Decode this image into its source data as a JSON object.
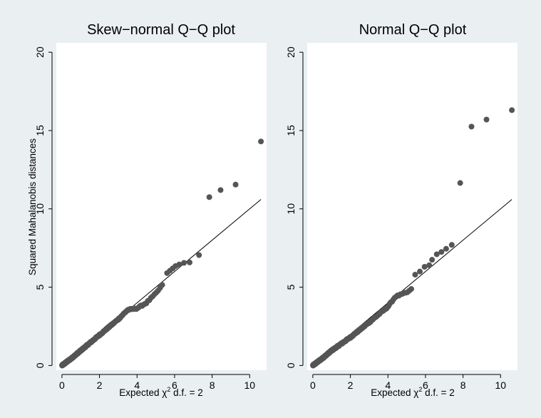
{
  "chart_data": [
    {
      "type": "scatter",
      "title": "Skew−normal Q−Q plot",
      "xlabel": {
        "prefix": "Expected ",
        "symbol": "χ",
        "superscript": "2",
        "suffix": " d.f. = 2"
      },
      "ylabel": "Squared Mahalanobis distances",
      "xlim": [
        -0.3,
        10.9
      ],
      "ylim": [
        -0.3,
        20.6
      ],
      "xticks": [
        0,
        2,
        4,
        6,
        8,
        10
      ],
      "yticks": [
        0,
        5,
        10,
        15,
        20
      ],
      "grid": false,
      "marker_color": "#555555",
      "reference_line": {
        "from": [
          0,
          0
        ],
        "to": [
          10.6,
          10.6
        ]
      },
      "outliers": [
        [
          5.6,
          5.9
        ],
        [
          5.75,
          6.05
        ],
        [
          5.9,
          6.2
        ],
        [
          6.05,
          6.35
        ],
        [
          6.25,
          6.45
        ],
        [
          6.5,
          6.55
        ],
        [
          6.8,
          6.58
        ],
        [
          7.3,
          7.05
        ],
        [
          7.85,
          10.75
        ],
        [
          8.45,
          11.2
        ],
        [
          9.25,
          11.55
        ],
        [
          10.6,
          14.3
        ]
      ],
      "bulk_anchors": [
        [
          0.0,
          0.0
        ],
        [
          0.5,
          0.45
        ],
        [
          1.0,
          0.95
        ],
        [
          2.0,
          1.95
        ],
        [
          3.0,
          2.95
        ],
        [
          3.5,
          3.55
        ],
        [
          4.0,
          3.65
        ],
        [
          4.5,
          4.0
        ],
        [
          5.0,
          4.6
        ],
        [
          5.4,
          5.2
        ]
      ],
      "bulk_count": 230
    },
    {
      "type": "scatter",
      "title": "Normal Q−Q plot",
      "xlabel": {
        "prefix": "Expected ",
        "symbol": "χ",
        "superscript": "2",
        "suffix": " d.f. = 2"
      },
      "ylabel": "",
      "xlim": [
        -0.3,
        10.9
      ],
      "ylim": [
        -0.3,
        20.6
      ],
      "xticks": [
        0,
        2,
        4,
        6,
        8,
        10
      ],
      "yticks": [
        0,
        5,
        10,
        15,
        20
      ],
      "grid": false,
      "marker_color": "#555555",
      "reference_line": {
        "from": [
          0,
          0
        ],
        "to": [
          10.6,
          10.6
        ]
      },
      "outliers": [
        [
          5.45,
          5.8
        ],
        [
          5.7,
          6.0
        ],
        [
          5.95,
          6.3
        ],
        [
          6.2,
          6.4
        ],
        [
          6.35,
          6.75
        ],
        [
          6.6,
          7.1
        ],
        [
          6.85,
          7.25
        ],
        [
          7.1,
          7.45
        ],
        [
          7.4,
          7.7
        ],
        [
          7.85,
          11.65
        ],
        [
          8.45,
          15.25
        ],
        [
          9.25,
          15.7
        ],
        [
          10.6,
          16.3
        ]
      ],
      "bulk_anchors": [
        [
          0.0,
          0.0
        ],
        [
          0.5,
          0.45
        ],
        [
          1.0,
          0.95
        ],
        [
          2.0,
          1.8
        ],
        [
          3.0,
          2.75
        ],
        [
          4.0,
          3.75
        ],
        [
          4.4,
          4.4
        ],
        [
          5.0,
          4.65
        ],
        [
          5.3,
          4.9
        ]
      ],
      "bulk_count": 230
    }
  ]
}
